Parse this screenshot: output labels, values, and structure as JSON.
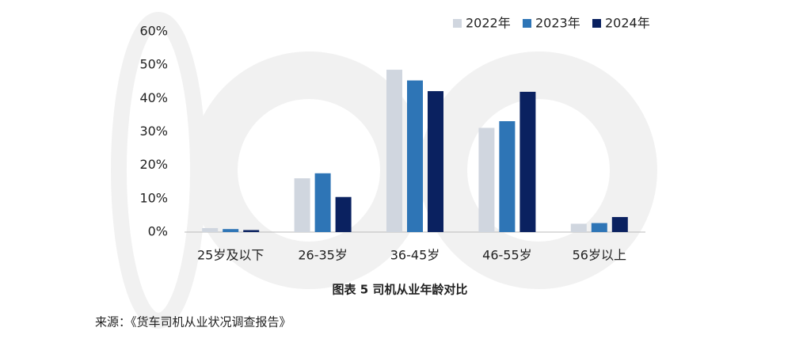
{
  "chart_data": {
    "type": "bar",
    "title": "图表 5  司机从业年龄对比",
    "source": "来源：《货车司机从业状况调查报告》",
    "categories": [
      "25岁及以下",
      "26-35岁",
      "36-45岁",
      "46-55岁",
      "56岁以上"
    ],
    "series": [
      {
        "name": "2022年",
        "color": "#d0d6df",
        "values": [
          1.2,
          16.1,
          48.6,
          31.2,
          2.5
        ]
      },
      {
        "name": "2023年",
        "color": "#2e75b6",
        "values": [
          0.9,
          17.6,
          45.4,
          33.2,
          2.7
        ]
      },
      {
        "name": "2024年",
        "color": "#0a2160",
        "values": [
          0.6,
          10.5,
          42.2,
          42.0,
          4.5
        ]
      }
    ],
    "ylim": [
      0,
      60
    ],
    "yticks": [
      {
        "value": 0,
        "label": "0%"
      },
      {
        "value": 10,
        "label": "10%"
      },
      {
        "value": 20,
        "label": "20%"
      },
      {
        "value": 30,
        "label": "30%"
      },
      {
        "value": 40,
        "label": "40%"
      },
      {
        "value": 50,
        "label": "50%"
      },
      {
        "value": 60,
        "label": "60%"
      }
    ],
    "grid": false
  }
}
